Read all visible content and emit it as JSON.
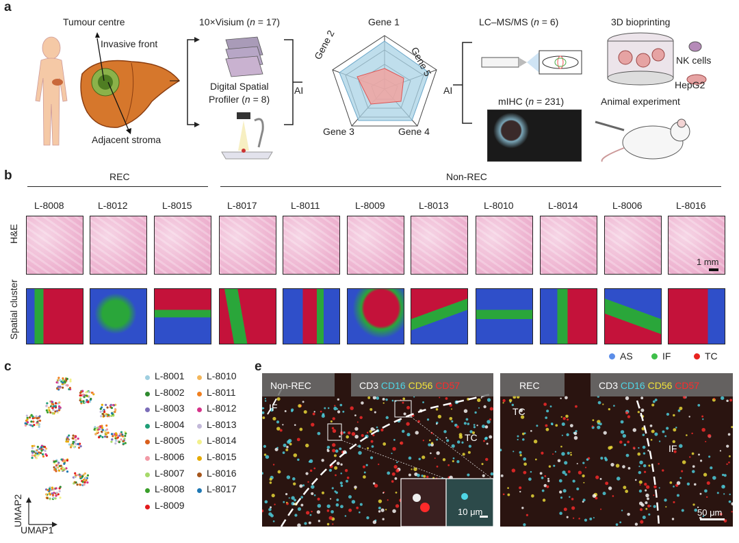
{
  "panel_a": {
    "letter": "a",
    "tumour_centre": "Tumour centre",
    "invasive_front": "Invasive front",
    "adjacent_stroma": "Adjacent stroma",
    "visium_prefix": "10×Visium (",
    "visium_n": "n",
    "visium_suffix": " = 17)",
    "dsp_line1": "Digital Spatial",
    "dsp_line2_prefix": "Profiler (",
    "dsp_n": "n",
    "dsp_suffix": " = 8)",
    "ai_left": "AI",
    "ai_right": "AI",
    "gene1": "Gene 1",
    "gene2": "Gene 2",
    "gene3": "Gene 3",
    "gene4": "Gene 4",
    "gene5": "Gene 5",
    "lcms_prefix": "LC–MS/MS (",
    "lcms_n": "n",
    "lcms_suffix": " = 6)",
    "mihc_prefix": "mIHC (",
    "mihc_n": "n",
    "mihc_suffix": " = 231)",
    "bioprinting": "3D bioprinting",
    "nk_cells": "NK cells",
    "hepg2": "HepG2",
    "animal": "Animal experiment"
  },
  "panel_b": {
    "letter": "b",
    "rec": "REC",
    "non_rec": "Non-REC",
    "samples": [
      "L-8008",
      "L-8012",
      "L-8015",
      "L-8017",
      "L-8011",
      "L-8009",
      "L-8013",
      "L-8010",
      "L-8014",
      "L-8006",
      "L-8016"
    ],
    "row_he": "H&E",
    "row_cluster": "Spatial cluster",
    "scale": "1 mm",
    "legend": [
      {
        "label": "AS",
        "color": "#5b8de8"
      },
      {
        "label": "IF",
        "color": "#3fbf4a"
      },
      {
        "label": "TC",
        "color": "#e8231f"
      }
    ],
    "cluster_colors": {
      "as": "#2f4fc9",
      "if": "#2aa63a",
      "tc": "#c4123a"
    }
  },
  "panel_c": {
    "letter": "c",
    "umap1": "UMAP1",
    "umap2": "UMAP2",
    "legend_left": [
      {
        "label": "L-8001",
        "color": "#9fcfe0"
      },
      {
        "label": "L-8002",
        "color": "#2f8a2f"
      },
      {
        "label": "L-8003",
        "color": "#7b6db8"
      },
      {
        "label": "L-8004",
        "color": "#1f9e77"
      },
      {
        "label": "L-8005",
        "color": "#d95f1c"
      },
      {
        "label": "L-8006",
        "color": "#f29aa6"
      },
      {
        "label": "L-8007",
        "color": "#a6d96a"
      },
      {
        "label": "L-8008",
        "color": "#3a9e2a"
      },
      {
        "label": "L-8009",
        "color": "#e31a1c"
      }
    ],
    "legend_right": [
      {
        "label": "L-8010",
        "color": "#f3b65a"
      },
      {
        "label": "L-8011",
        "color": "#f07f1f"
      },
      {
        "label": "L-8012",
        "color": "#d6338a"
      },
      {
        "label": "L-8013",
        "color": "#c3b9d9"
      },
      {
        "label": "L-8014",
        "color": "#f2f08c"
      },
      {
        "label": "L-8015",
        "color": "#e6ab02"
      },
      {
        "label": "L-8016",
        "color": "#a6561c"
      },
      {
        "label": "L-8017",
        "color": "#1f78b4"
      }
    ]
  },
  "panel_e": {
    "letter": "e",
    "left_title": "Non-REC",
    "right_title": "REC",
    "cd3": "CD3",
    "cd16": "CD16",
    "cd56": "CD56",
    "cd57": "CD57",
    "colors": {
      "cd3": "#ffffff",
      "cd16": "#4fd6e6",
      "cd56": "#f2e23a",
      "cd57": "#ff2a2a"
    },
    "left_if": "IF",
    "left_tc": "TC",
    "right_tc": "TC",
    "right_if": "IF",
    "scale_left": "10 μm",
    "scale_right": "50 μm"
  }
}
